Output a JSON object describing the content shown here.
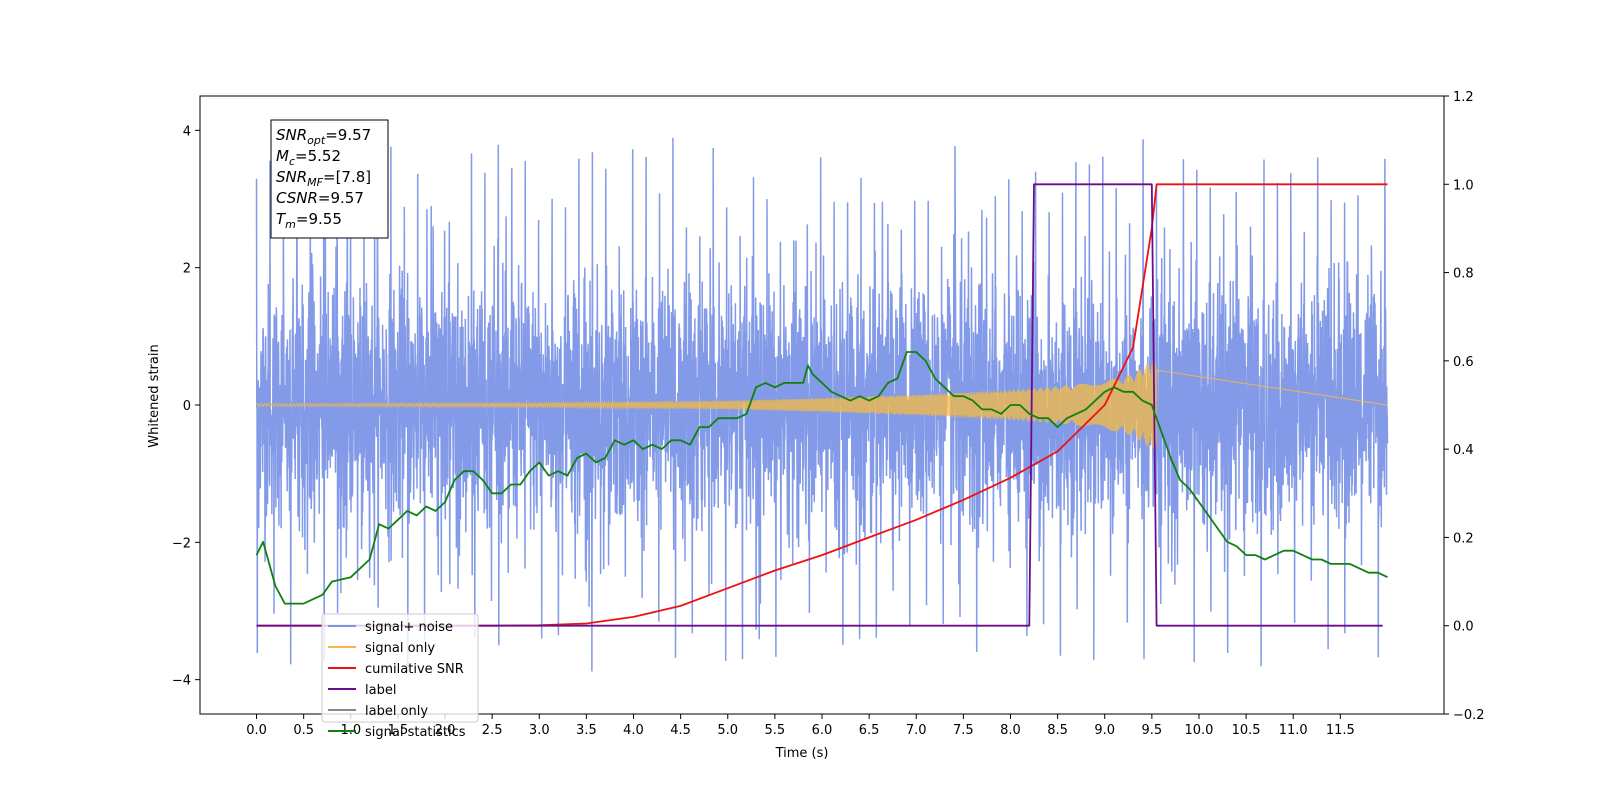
{
  "chart_data": {
    "type": "line",
    "xlabel": "Time (s)",
    "ylabel_left": "Whitened strain",
    "ylabel_right": "",
    "xlim": [
      -0.6,
      12.6
    ],
    "ylim_left": [
      -4.5,
      4.5
    ],
    "ylim_right": [
      -0.2,
      1.2
    ],
    "x_ticks": [
      0.0,
      0.5,
      1.0,
      1.5,
      2.0,
      2.5,
      3.0,
      3.5,
      4.0,
      4.5,
      5.0,
      5.5,
      6.0,
      6.5,
      7.0,
      7.5,
      8.0,
      8.5,
      9.0,
      9.5,
      10.0,
      10.5,
      11.0,
      11.5
    ],
    "x_tick_labels": [
      "0.0",
      "0.5",
      "1.0",
      "1.5",
      "2.0",
      "2.5",
      "3.0",
      "3.5",
      "4.0",
      "4.5",
      "5.0",
      "5.5",
      "6.0",
      "6.5",
      "7.0",
      "7.5",
      "8.0",
      "8.5",
      "9.0",
      "9.5",
      "10.0",
      "10.5",
      "11.0",
      "11.5"
    ],
    "y_ticks_left": [
      -4,
      -2,
      0,
      2,
      4
    ],
    "y_tick_labels_left": [
      "−4",
      "−2",
      "0",
      "2",
      "4"
    ],
    "y_ticks_right": [
      -0.2,
      0.0,
      0.2,
      0.4,
      0.6,
      0.8,
      1.0,
      1.2
    ],
    "y_tick_labels_right": [
      "−0.2",
      "0.0",
      "0.2",
      "0.4",
      "0.6",
      "0.8",
      "1.0",
      "1.2"
    ],
    "grid": false,
    "legend_position": "lower-left",
    "annotation_box": {
      "position": "top-left",
      "lines": [
        {
          "base": "SNR",
          "sub": "opt",
          "value": "=9.57"
        },
        {
          "base": "M",
          "sub": "c",
          "value": "=5.52"
        },
        {
          "base": "SNR",
          "sub": "MF",
          "value": "=[7.8]"
        },
        {
          "base": "CSNR",
          "sub": "",
          "value": "=9.57"
        },
        {
          "base": "T",
          "sub": "m",
          "value": "=9.55"
        }
      ]
    },
    "series": [
      {
        "name": "signal+ noise",
        "axis": "left",
        "color": "#7b95e6",
        "style": "noise",
        "x_range": [
          0.0,
          12.0
        ],
        "envelope": {
          "typical_amplitude": 1.5,
          "max_peak": 4.1,
          "min_trough": -4.1
        }
      },
      {
        "name": "signal only",
        "axis": "left",
        "color": "#f5b942",
        "style": "chirp",
        "x_range": [
          0.0,
          12.0
        ],
        "chirp_end": 9.55,
        "amplitude_points": [
          [
            0.0,
            0.02
          ],
          [
            3.0,
            0.03
          ],
          [
            5.0,
            0.06
          ],
          [
            6.0,
            0.1
          ],
          [
            7.0,
            0.15
          ],
          [
            8.0,
            0.22
          ],
          [
            8.5,
            0.27
          ],
          [
            9.0,
            0.35
          ],
          [
            9.3,
            0.45
          ],
          [
            9.5,
            0.65
          ]
        ]
      },
      {
        "name": "cumilative SNR",
        "axis": "right",
        "color": "#ee1111",
        "points": [
          [
            0.0,
            0.0
          ],
          [
            2.5,
            0.0
          ],
          [
            3.0,
            0.001
          ],
          [
            3.5,
            0.005
          ],
          [
            4.0,
            0.02
          ],
          [
            4.5,
            0.045
          ],
          [
            5.0,
            0.085
          ],
          [
            5.5,
            0.125
          ],
          [
            6.0,
            0.16
          ],
          [
            6.5,
            0.2
          ],
          [
            7.0,
            0.24
          ],
          [
            7.5,
            0.285
          ],
          [
            8.0,
            0.335
          ],
          [
            8.5,
            0.395
          ],
          [
            9.0,
            0.5
          ],
          [
            9.3,
            0.63
          ],
          [
            9.5,
            0.9
          ],
          [
            9.55,
            1.0
          ],
          [
            12.0,
            1.0
          ]
        ]
      },
      {
        "name": "label",
        "axis": "right",
        "color": "#6a0f8c",
        "points": [
          [
            0.0,
            0.0
          ],
          [
            8.2,
            0.0
          ],
          [
            8.25,
            1.0
          ],
          [
            9.5,
            1.0
          ],
          [
            9.55,
            0.0
          ],
          [
            11.95,
            0.0
          ]
        ]
      },
      {
        "name": "label only",
        "axis": "right",
        "color": "#888888",
        "points": []
      },
      {
        "name": "signal statistics",
        "axis": "right",
        "color": "#118011",
        "points": [
          [
            0.0,
            0.16
          ],
          [
            0.07,
            0.19
          ],
          [
            0.2,
            0.09
          ],
          [
            0.3,
            0.05
          ],
          [
            0.5,
            0.05
          ],
          [
            0.6,
            0.06
          ],
          [
            0.7,
            0.07
          ],
          [
            0.8,
            0.1
          ],
          [
            1.0,
            0.11
          ],
          [
            1.1,
            0.13
          ],
          [
            1.2,
            0.15
          ],
          [
            1.3,
            0.23
          ],
          [
            1.4,
            0.22
          ],
          [
            1.5,
            0.24
          ],
          [
            1.6,
            0.26
          ],
          [
            1.7,
            0.25
          ],
          [
            1.8,
            0.27
          ],
          [
            1.9,
            0.26
          ],
          [
            2.0,
            0.28
          ],
          [
            2.1,
            0.33
          ],
          [
            2.2,
            0.35
          ],
          [
            2.3,
            0.35
          ],
          [
            2.4,
            0.33
          ],
          [
            2.5,
            0.3
          ],
          [
            2.6,
            0.3
          ],
          [
            2.7,
            0.32
          ],
          [
            2.8,
            0.32
          ],
          [
            2.9,
            0.35
          ],
          [
            3.0,
            0.37
          ],
          [
            3.1,
            0.34
          ],
          [
            3.2,
            0.35
          ],
          [
            3.3,
            0.34
          ],
          [
            3.4,
            0.38
          ],
          [
            3.5,
            0.39
          ],
          [
            3.6,
            0.37
          ],
          [
            3.7,
            0.38
          ],
          [
            3.8,
            0.42
          ],
          [
            3.9,
            0.41
          ],
          [
            4.0,
            0.42
          ],
          [
            4.1,
            0.4
          ],
          [
            4.2,
            0.41
          ],
          [
            4.3,
            0.4
          ],
          [
            4.4,
            0.42
          ],
          [
            4.5,
            0.42
          ],
          [
            4.6,
            0.41
          ],
          [
            4.7,
            0.45
          ],
          [
            4.8,
            0.45
          ],
          [
            4.9,
            0.47
          ],
          [
            5.0,
            0.47
          ],
          [
            5.1,
            0.47
          ],
          [
            5.2,
            0.48
          ],
          [
            5.3,
            0.54
          ],
          [
            5.4,
            0.55
          ],
          [
            5.5,
            0.54
          ],
          [
            5.6,
            0.55
          ],
          [
            5.7,
            0.55
          ],
          [
            5.8,
            0.55
          ],
          [
            5.85,
            0.59
          ],
          [
            5.9,
            0.57
          ],
          [
            6.0,
            0.55
          ],
          [
            6.1,
            0.53
          ],
          [
            6.2,
            0.52
          ],
          [
            6.3,
            0.51
          ],
          [
            6.4,
            0.52
          ],
          [
            6.5,
            0.51
          ],
          [
            6.6,
            0.52
          ],
          [
            6.7,
            0.55
          ],
          [
            6.8,
            0.56
          ],
          [
            6.9,
            0.62
          ],
          [
            7.0,
            0.62
          ],
          [
            7.1,
            0.6
          ],
          [
            7.2,
            0.56
          ],
          [
            7.3,
            0.54
          ],
          [
            7.4,
            0.52
          ],
          [
            7.5,
            0.52
          ],
          [
            7.6,
            0.51
          ],
          [
            7.7,
            0.49
          ],
          [
            7.8,
            0.49
          ],
          [
            7.9,
            0.48
          ],
          [
            8.0,
            0.5
          ],
          [
            8.1,
            0.5
          ],
          [
            8.2,
            0.48
          ],
          [
            8.3,
            0.47
          ],
          [
            8.4,
            0.47
          ],
          [
            8.5,
            0.45
          ],
          [
            8.6,
            0.47
          ],
          [
            8.7,
            0.48
          ],
          [
            8.8,
            0.49
          ],
          [
            8.9,
            0.51
          ],
          [
            9.0,
            0.53
          ],
          [
            9.1,
            0.54
          ],
          [
            9.2,
            0.53
          ],
          [
            9.3,
            0.53
          ],
          [
            9.4,
            0.51
          ],
          [
            9.5,
            0.5
          ],
          [
            9.6,
            0.44
          ],
          [
            9.7,
            0.38
          ],
          [
            9.8,
            0.33
          ],
          [
            9.9,
            0.31
          ],
          [
            10.0,
            0.28
          ],
          [
            10.1,
            0.25
          ],
          [
            10.2,
            0.22
          ],
          [
            10.3,
            0.19
          ],
          [
            10.4,
            0.18
          ],
          [
            10.5,
            0.16
          ],
          [
            10.6,
            0.16
          ],
          [
            10.7,
            0.15
          ],
          [
            10.8,
            0.16
          ],
          [
            10.9,
            0.17
          ],
          [
            11.0,
            0.17
          ],
          [
            11.1,
            0.16
          ],
          [
            11.2,
            0.15
          ],
          [
            11.3,
            0.15
          ],
          [
            11.4,
            0.14
          ],
          [
            11.5,
            0.14
          ],
          [
            11.6,
            0.14
          ],
          [
            11.7,
            0.13
          ],
          [
            11.8,
            0.12
          ],
          [
            11.9,
            0.12
          ],
          [
            12.0,
            0.11
          ]
        ]
      }
    ]
  }
}
